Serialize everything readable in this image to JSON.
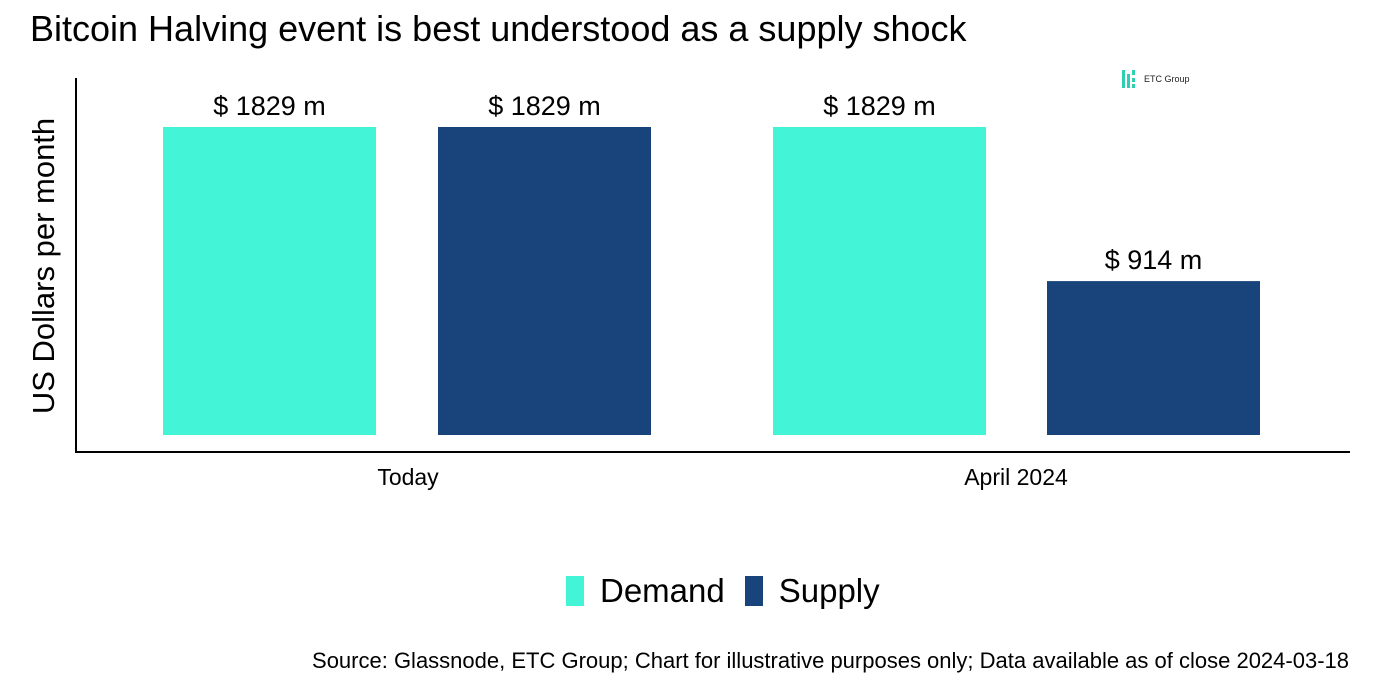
{
  "title": "Bitcoin Halving event is best understood as a supply shock",
  "logo": {
    "text": "ETC Group",
    "color": "#2ecfb0"
  },
  "source": "Source: Glassnode, ETC Group; Chart for illustrative purposes only; Data available as of close 2024-03-18",
  "colors": {
    "demand": "#43f5d6",
    "supply": "#18447b"
  },
  "chart_data": {
    "type": "bar",
    "title": "Bitcoin Halving event is best understood as a supply shock",
    "ylabel": "US Dollars per month",
    "xlabel": "",
    "categories": [
      "Today",
      "April 2024"
    ],
    "series": [
      {
        "name": "Demand",
        "values": [
          1829,
          1829
        ],
        "labels": [
          "$ 1829 m",
          "$ 1829 m"
        ]
      },
      {
        "name": "Supply",
        "values": [
          1829,
          914
        ],
        "labels": [
          "$ 1829 m",
          "$ 914 m"
        ]
      }
    ],
    "ylim": [
      0,
      1829
    ],
    "grid": false,
    "legend": "bottom"
  }
}
